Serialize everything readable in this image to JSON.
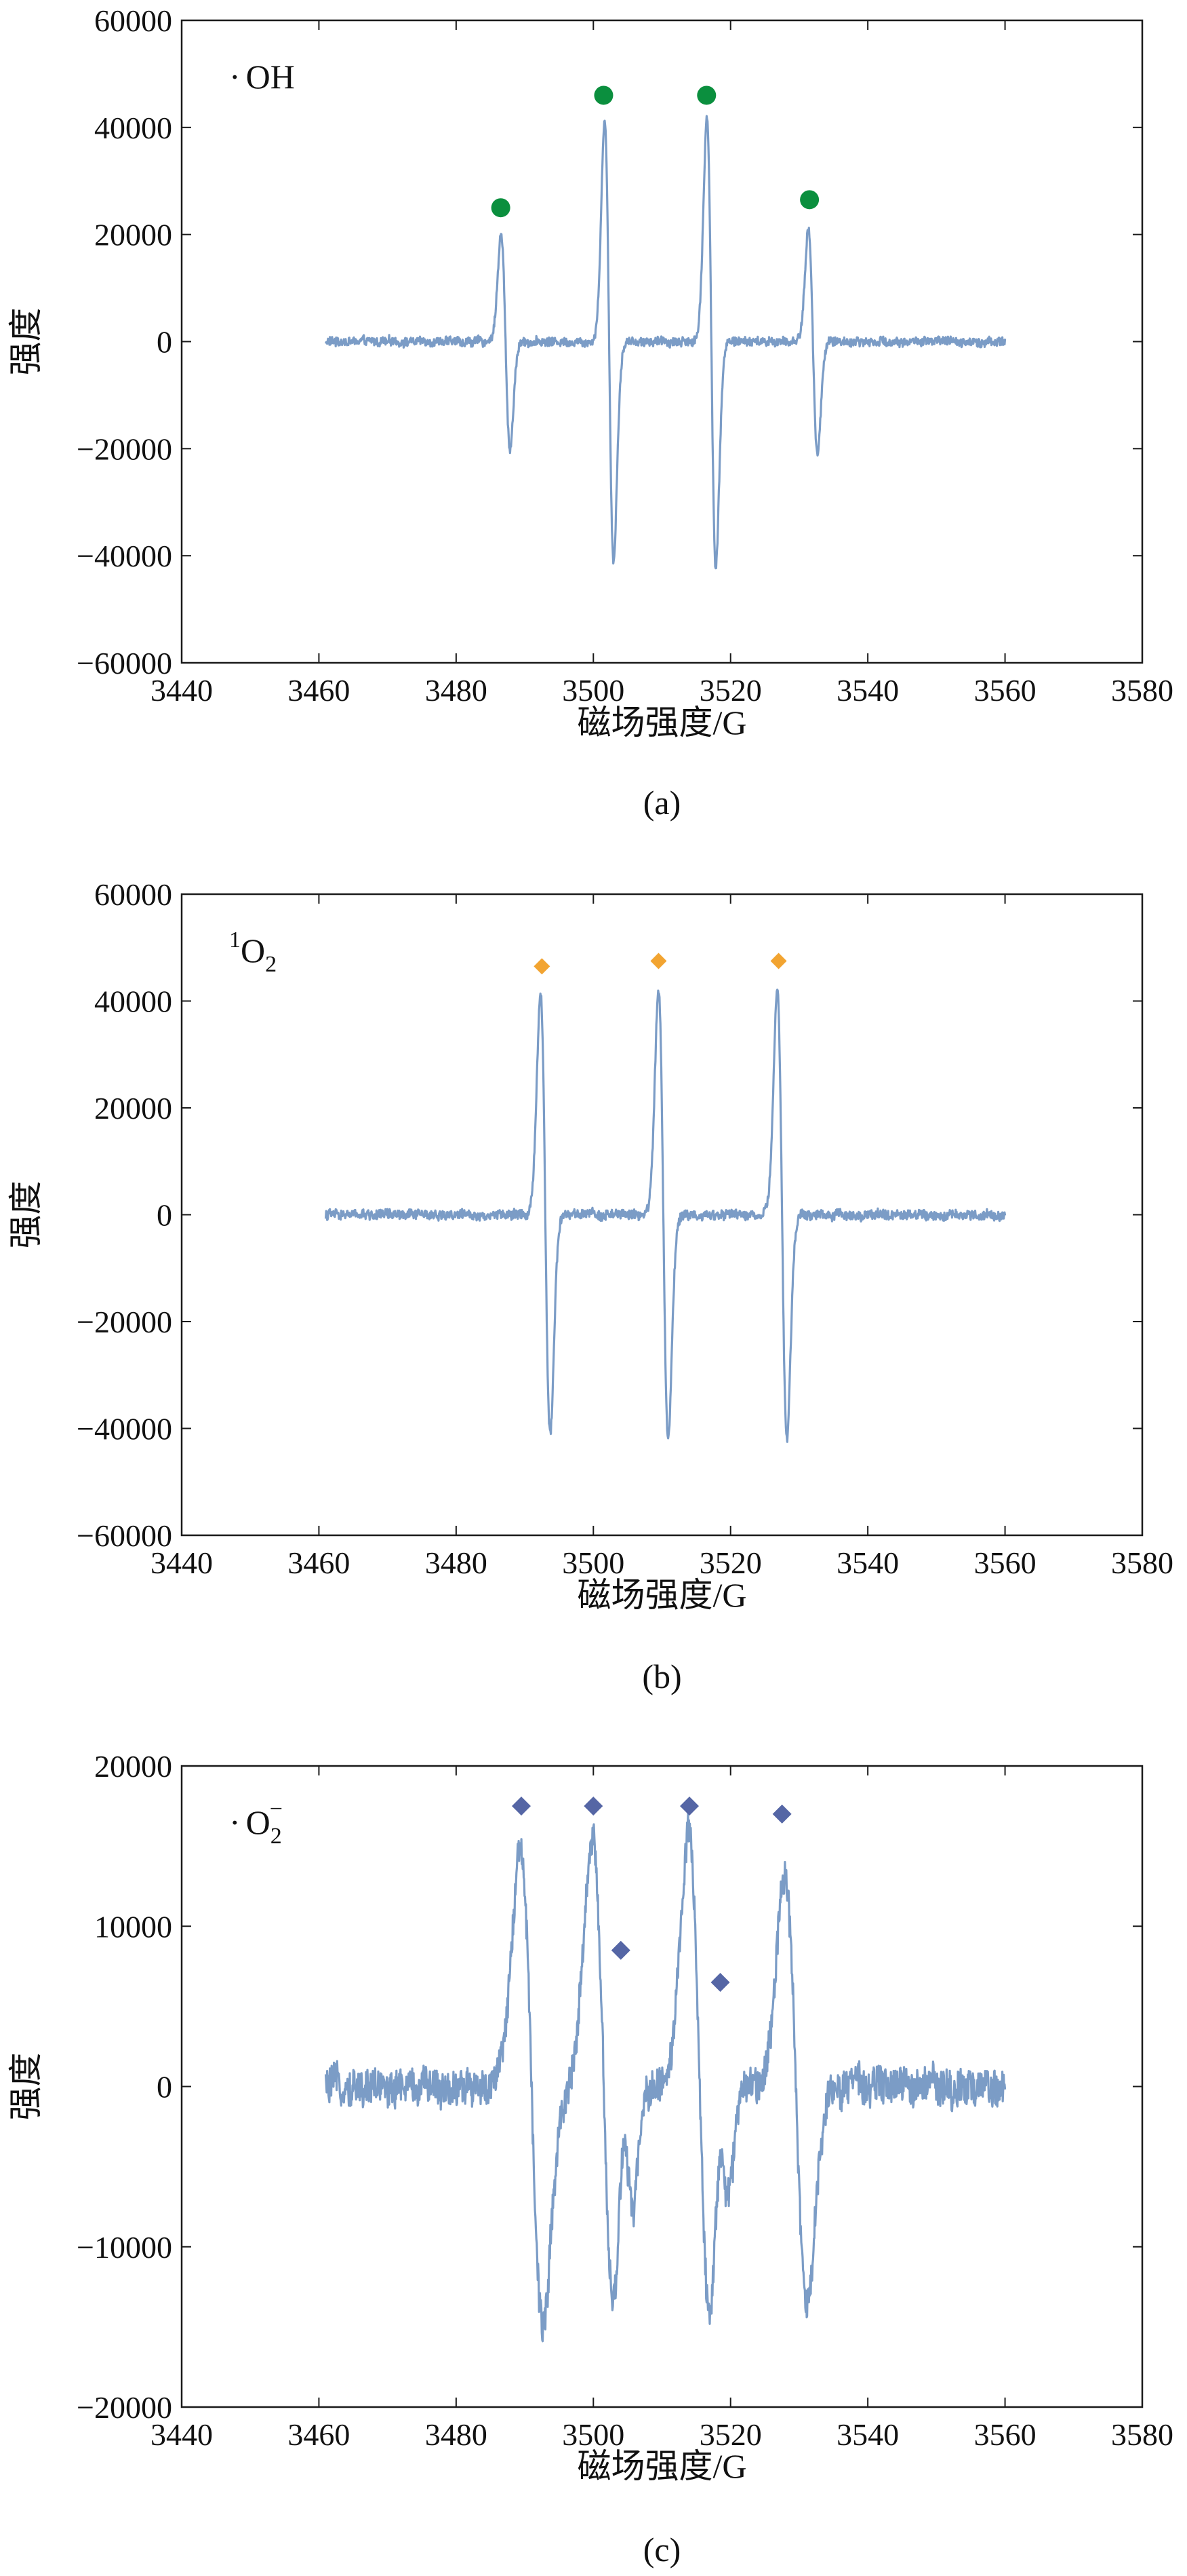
{
  "chart_data": [
    {
      "type": "line",
      "panel_label": "(a)",
      "species_label": {
        "dot": "·",
        "main": "OH",
        "sup": "",
        "sub": ""
      },
      "xlabel": "磁场强度/G",
      "ylabel": "强度",
      "xlim": [
        3440,
        3580
      ],
      "ylim": [
        -60000,
        60000
      ],
      "x_ticks": [
        3440,
        3460,
        3480,
        3500,
        3520,
        3540,
        3560,
        3580
      ],
      "y_ticks": [
        -60000,
        -40000,
        -20000,
        0,
        20000,
        40000,
        60000
      ],
      "line_color": "#7b9cc6",
      "x_range": [
        3461,
        3560
      ],
      "noise_amplitude": 1100,
      "features": [
        {
          "type": "derivative",
          "x": 3487.2,
          "amplitude": 20000,
          "width": 0.65
        },
        {
          "type": "derivative",
          "x": 3502.3,
          "amplitude": 41000,
          "width": 0.65
        },
        {
          "type": "derivative",
          "x": 3517.2,
          "amplitude": 42000,
          "width": 0.65
        },
        {
          "type": "derivative",
          "x": 3532.0,
          "amplitude": 21000,
          "width": 0.65
        }
      ],
      "markers": {
        "shape": "circle",
        "color": "#0b8f3e",
        "points": [
          {
            "x": 3486.5,
            "y": 25000
          },
          {
            "x": 3501.5,
            "y": 46000
          },
          {
            "x": 3516.5,
            "y": 46000
          },
          {
            "x": 3531.5,
            "y": 26500
          }
        ]
      }
    },
    {
      "type": "line",
      "panel_label": "(b)",
      "species_label": {
        "dot": "",
        "main": "O",
        "sup": "1",
        "sub": "2"
      },
      "xlabel": "磁场强度/G",
      "ylabel": "强度",
      "xlim": [
        3440,
        3580
      ],
      "ylim": [
        -60000,
        60000
      ],
      "x_ticks": [
        3440,
        3460,
        3480,
        3500,
        3520,
        3540,
        3560,
        3580
      ],
      "y_ticks": [
        -60000,
        -40000,
        -20000,
        0,
        20000,
        40000,
        60000
      ],
      "line_color": "#7b9cc6",
      "x_range": [
        3461,
        3560
      ],
      "noise_amplitude": 1200,
      "features": [
        {
          "type": "derivative",
          "x": 3493.0,
          "amplitude": 41000,
          "width": 0.7
        },
        {
          "type": "derivative",
          "x": 3510.2,
          "amplitude": 42000,
          "width": 0.7
        },
        {
          "type": "derivative",
          "x": 3527.5,
          "amplitude": 42000,
          "width": 0.7
        }
      ],
      "markers": {
        "shape": "diamond",
        "color": "#f2a431",
        "points": [
          {
            "x": 3492.5,
            "y": 46500
          },
          {
            "x": 3509.5,
            "y": 47500
          },
          {
            "x": 3527.0,
            "y": 47500
          }
        ]
      }
    },
    {
      "type": "line",
      "panel_label": "(c)",
      "species_label": {
        "dot": "·",
        "main": "O",
        "sup": "−",
        "sub": "2"
      },
      "xlabel": "磁场强度/G",
      "ylabel": "强度",
      "xlim": [
        3440,
        3580
      ],
      "ylim": [
        -20000,
        20000
      ],
      "x_ticks": [
        3440,
        3460,
        3480,
        3500,
        3520,
        3540,
        3560,
        3580
      ],
      "y_ticks": [
        -20000,
        -10000,
        0,
        10000,
        20000
      ],
      "line_color": "#7b9cc6",
      "x_range": [
        3461,
        3560
      ],
      "noise_amplitude": 1500,
      "features": [
        {
          "type": "derivative",
          "x": 3491.0,
          "amplitude": 15000,
          "width": 1.6
        },
        {
          "type": "derivative",
          "x": 3501.5,
          "amplitude": 15500,
          "width": 1.6
        },
        {
          "type": "derivative",
          "x": 3505.0,
          "amplitude": 6000,
          "width": 0.9
        },
        {
          "type": "derivative",
          "x": 3515.5,
          "amplitude": 15500,
          "width": 1.6
        },
        {
          "type": "derivative",
          "x": 3519.0,
          "amplitude": 5000,
          "width": 0.9
        },
        {
          "type": "derivative",
          "x": 3529.5,
          "amplitude": 13500,
          "width": 1.6
        }
      ],
      "markers": {
        "shape": "diamond",
        "color": "#5566a5",
        "points": [
          {
            "x": 3489.5,
            "y": 17500
          },
          {
            "x": 3500.0,
            "y": 17500
          },
          {
            "x": 3504.0,
            "y": 8500
          },
          {
            "x": 3514.0,
            "y": 17500
          },
          {
            "x": 3518.5,
            "y": 6500
          },
          {
            "x": 3527.5,
            "y": 17000
          }
        ]
      }
    }
  ]
}
